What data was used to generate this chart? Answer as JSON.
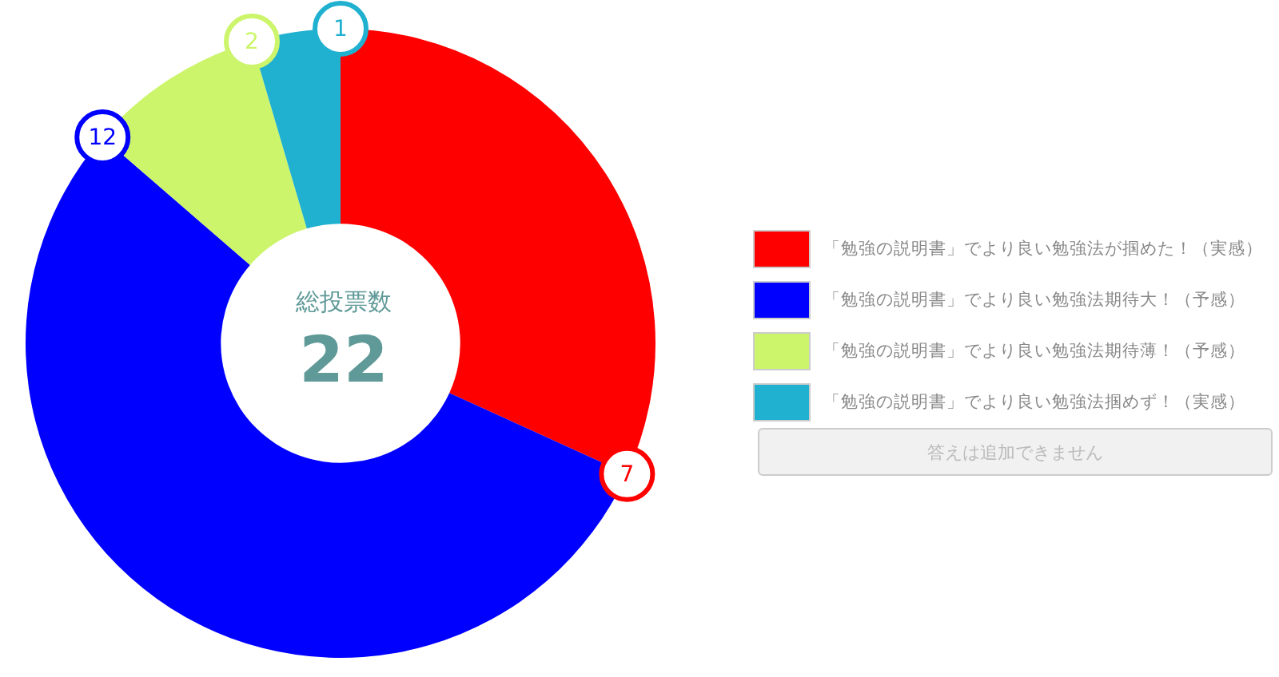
{
  "chart_data": {
    "type": "donut",
    "categories": [
      "「勉強の説明書」でより良い勉強法が掴めた！（実感）",
      "「勉強の説明書」でより良い勉強法期待大！（予感）",
      "「勉強の説明書」でより良い勉強法期待薄！（予感）",
      "「勉強の説明書」でより良い勉強法掴めず！（実感）"
    ],
    "values": [
      7,
      12,
      2,
      1
    ],
    "colors": [
      "#ff0000",
      "#0000ff",
      "#ccf56b",
      "#20b0d0"
    ],
    "data_labels": true,
    "legend": "right",
    "annotations": [
      "総投票数",
      "22",
      "答えは追加できません"
    ]
  }
}
